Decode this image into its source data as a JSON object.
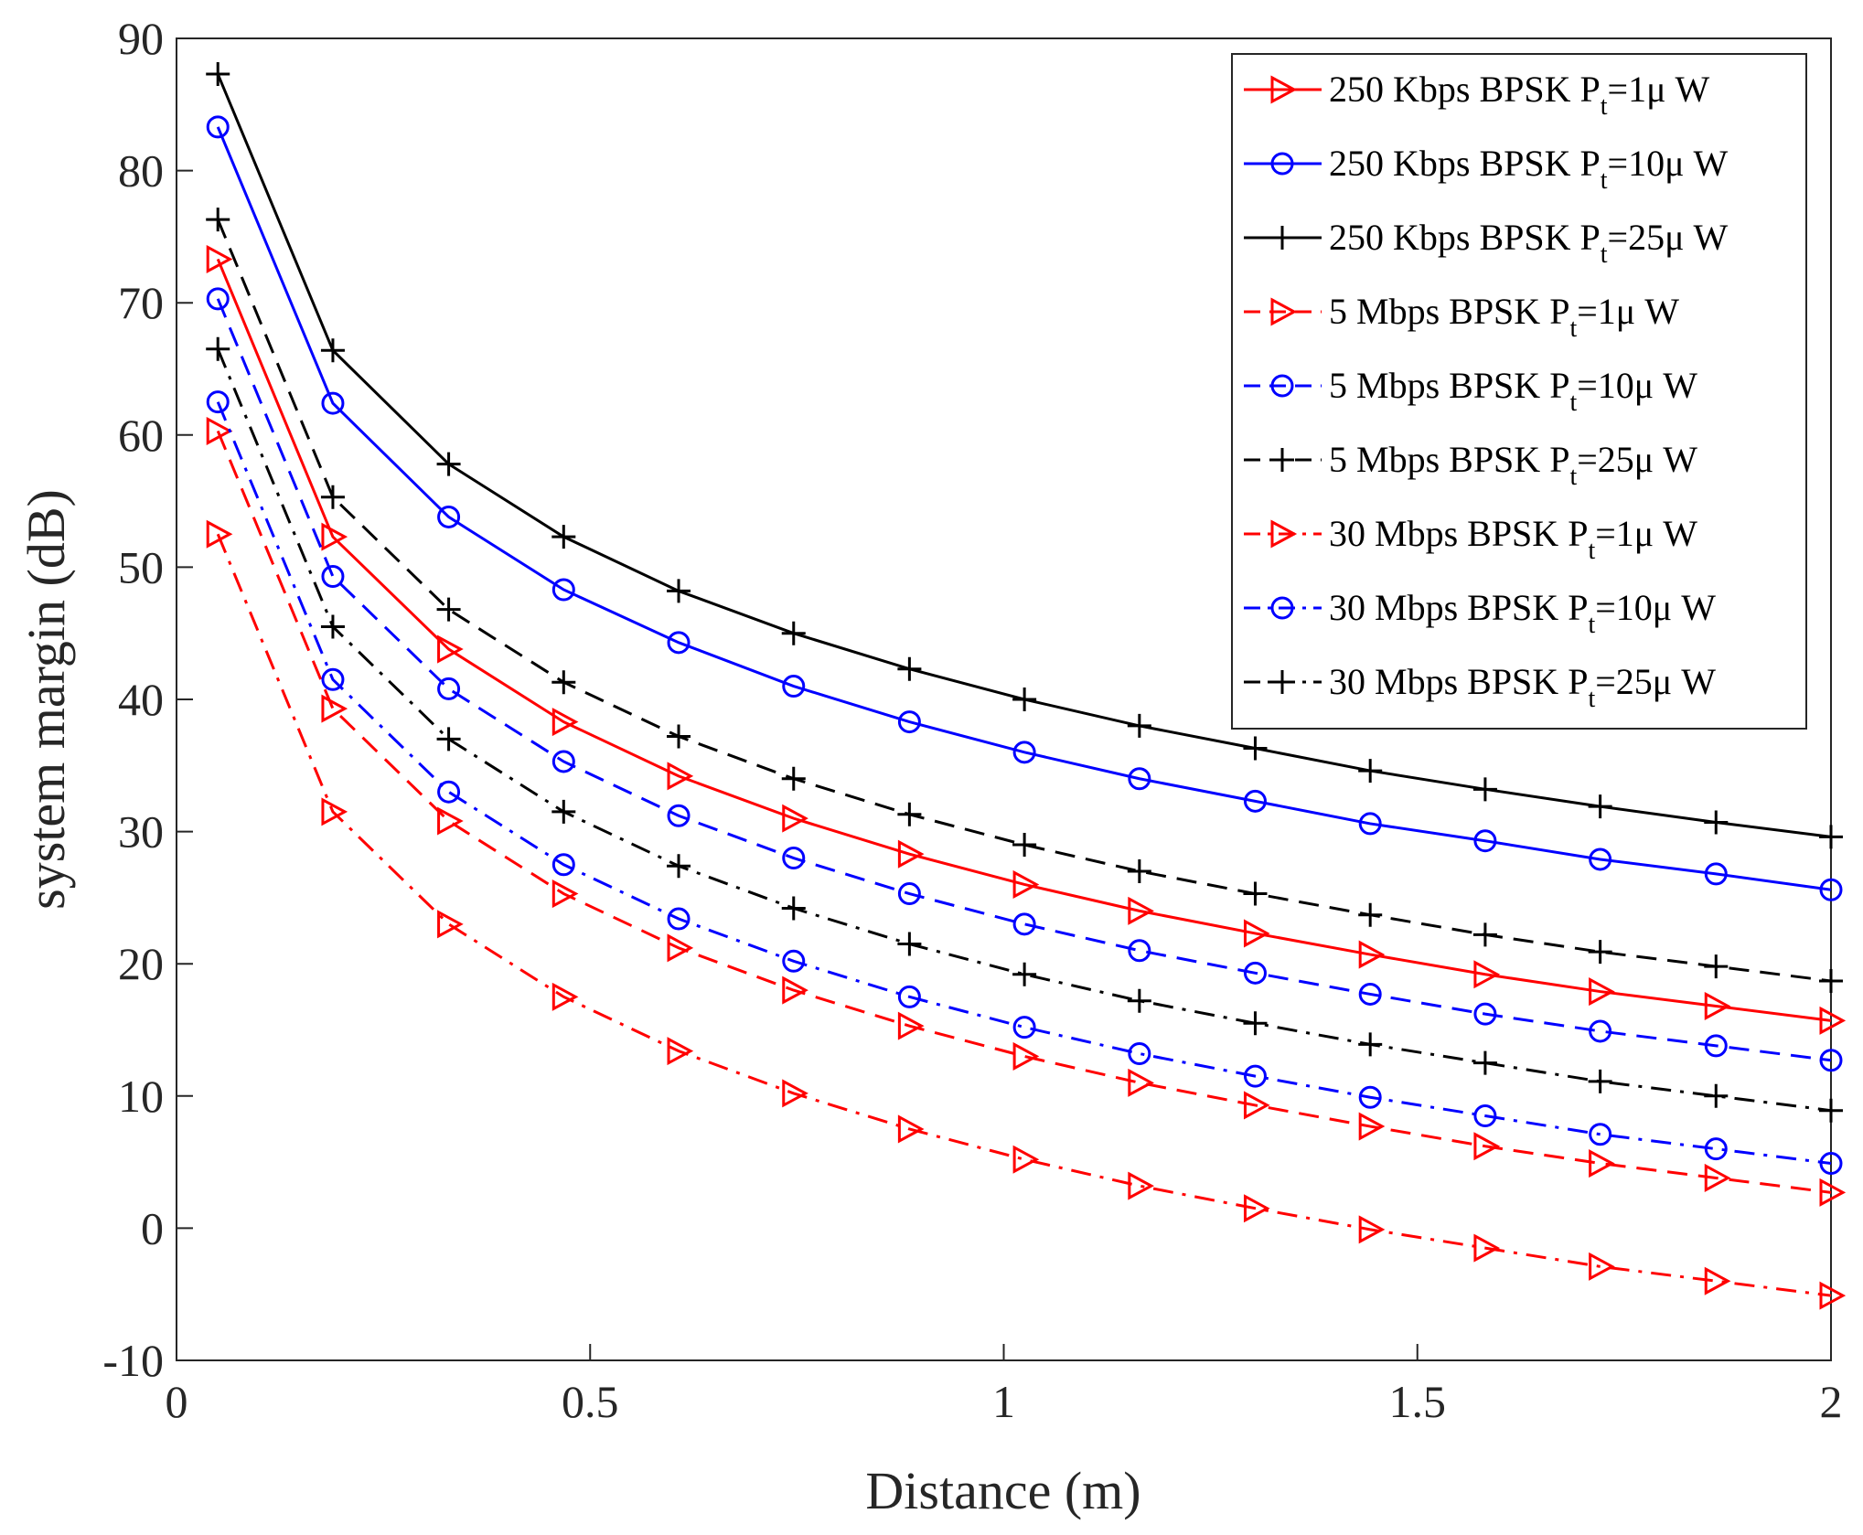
{
  "chart_data": {
    "type": "line",
    "title": "",
    "xlabel": "Distance (m)",
    "ylabel": "system margin (dB)",
    "xlim": [
      0,
      2
    ],
    "ylim": [
      -10,
      90
    ],
    "xticks": [
      0,
      0.5,
      1,
      1.5,
      2
    ],
    "xtick_labels": [
      "0",
      "0.5",
      "1",
      "1.5",
      "2"
    ],
    "yticks": [
      -10,
      0,
      10,
      20,
      30,
      40,
      50,
      60,
      70,
      80,
      90
    ],
    "ytick_labels": [
      "-10",
      "0",
      "10",
      "20",
      "30",
      "40",
      "50",
      "60",
      "70",
      "80",
      "90"
    ],
    "grid": false,
    "legend_position": "top-right",
    "x": [
      0.05,
      0.189,
      0.329,
      0.468,
      0.607,
      0.746,
      0.886,
      1.025,
      1.164,
      1.304,
      1.443,
      1.582,
      1.721,
      1.861,
      2.0
    ],
    "series": [
      {
        "name": "250 Kbps BPSK Pt=1μ W",
        "label_main": "250 Kbps BPSK P",
        "label_sub": "t",
        "label_tail": "=1μ W",
        "color": "#ff0000",
        "style": "solid",
        "marker": "triangle-right",
        "values": [
          73.3,
          52.3,
          43.8,
          38.3,
          34.2,
          31.0,
          28.3,
          26.0,
          24.0,
          22.3,
          20.7,
          19.2,
          17.9,
          16.8,
          15.7
        ]
      },
      {
        "name": "250 Kbps BPSK Pt=10μ W",
        "label_main": "250 Kbps BPSK P",
        "label_sub": "t",
        "label_tail": "=10μ W",
        "color": "#0000ff",
        "style": "solid",
        "marker": "circle",
        "values": [
          83.3,
          62.4,
          53.8,
          48.3,
          44.3,
          41.0,
          38.3,
          36.0,
          34.0,
          32.3,
          30.6,
          29.3,
          27.9,
          26.8,
          25.6
        ]
      },
      {
        "name": "250 Kbps BPSK Pt=25μ W",
        "label_main": "250 Kbps BPSK P",
        "label_sub": "t",
        "label_tail": "=25μ W",
        "color": "#000000",
        "style": "solid",
        "marker": "plus",
        "values": [
          87.3,
          66.4,
          57.8,
          52.3,
          48.2,
          45.0,
          42.3,
          40.0,
          38.0,
          36.3,
          34.6,
          33.2,
          31.9,
          30.7,
          29.6
        ]
      },
      {
        "name": "5 Mbps BPSK Pt=1μ W",
        "label_main": "5 Mbps BPSK P",
        "label_sub": "t",
        "label_tail": "=1μ W",
        "color": "#ff0000",
        "style": "dashed",
        "marker": "triangle-right",
        "values": [
          60.3,
          39.3,
          30.8,
          25.3,
          21.2,
          18.0,
          15.3,
          13.0,
          11.0,
          9.3,
          7.7,
          6.2,
          4.9,
          3.8,
          2.7
        ]
      },
      {
        "name": "5 Mbps BPSK Pt=10μ W",
        "label_main": "5 Mbps BPSK P",
        "label_sub": "t",
        "label_tail": "=10μ W",
        "color": "#0000ff",
        "style": "dashed",
        "marker": "circle",
        "values": [
          70.3,
          49.3,
          40.8,
          35.3,
          31.2,
          28.0,
          25.3,
          23.0,
          21.0,
          19.3,
          17.7,
          16.2,
          14.9,
          13.8,
          12.7
        ]
      },
      {
        "name": "5 Mbps BPSK Pt=25μ W",
        "label_main": "5 Mbps BPSK P",
        "label_sub": "t",
        "label_tail": "=25μ W",
        "color": "#000000",
        "style": "dashed",
        "marker": "plus",
        "values": [
          76.3,
          55.3,
          46.8,
          41.3,
          37.2,
          34.0,
          31.3,
          29.0,
          27.0,
          25.3,
          23.7,
          22.2,
          20.9,
          19.8,
          18.7
        ]
      },
      {
        "name": "30 Mbps BPSK Pt=1μ W",
        "label_main": "30 Mbps BPSK P",
        "label_sub": "t",
        "label_tail": "=1μ W",
        "color": "#ff0000",
        "style": "dashdot",
        "marker": "triangle-right",
        "values": [
          52.5,
          31.5,
          23.0,
          17.5,
          13.4,
          10.2,
          7.5,
          5.2,
          3.2,
          1.5,
          -0.1,
          -1.5,
          -2.9,
          -4.0,
          -5.1
        ]
      },
      {
        "name": "30 Mbps BPSK Pt=10μ W",
        "label_main": "30 Mbps BPSK P",
        "label_sub": "t",
        "label_tail": "=10μ W",
        "color": "#0000ff",
        "style": "dashdot",
        "marker": "circle",
        "values": [
          62.5,
          41.5,
          33.0,
          27.5,
          23.4,
          20.2,
          17.5,
          15.2,
          13.2,
          11.5,
          9.9,
          8.5,
          7.1,
          6.0,
          4.9
        ]
      },
      {
        "name": "30 Mbps BPSK Pt=25μ W",
        "label_main": "30 Mbps BPSK P",
        "label_sub": "t",
        "label_tail": "=25μ W",
        "color": "#000000",
        "style": "dashdot",
        "marker": "plus",
        "values": [
          66.5,
          45.5,
          37.0,
          31.5,
          27.4,
          24.2,
          21.5,
          19.2,
          17.2,
          15.5,
          13.9,
          12.5,
          11.1,
          10.0,
          8.9
        ]
      }
    ]
  }
}
